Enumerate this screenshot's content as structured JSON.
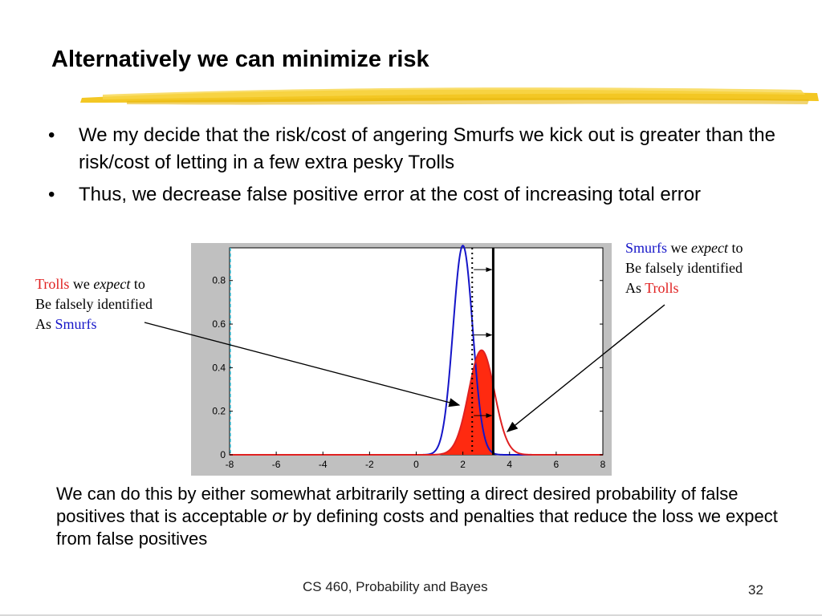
{
  "slide": {
    "title": "Alternatively we can minimize risk",
    "bullets": [
      "We my decide that the risk/cost of angering Smurfs we kick out is greater than the risk/cost of letting in a few extra pesky Trolls",
      "Thus, we decrease false positive error at the cost of increasing total error"
    ],
    "left_note": {
      "trolls": "Trolls",
      "we": " we ",
      "expect": "expect",
      "to": " to",
      "line2": "Be falsely identified",
      "as": "As ",
      "smurfs": "Smurfs"
    },
    "right_note": {
      "smurfs": "Smurfs",
      "we": " we ",
      "expect": "expect",
      "to": " to",
      "line2": "Be falsely identified",
      "as": "As ",
      "trolls": "Trolls"
    },
    "bottom_text": {
      "part1": "We can do this by either somewhat arbitrarily setting a direct desired probability of false positives that is acceptable ",
      "or": "or",
      "part2": " by defining costs and penalties that reduce the loss we expect from false positives"
    },
    "footer": "CS 460, Probability and Bayes",
    "page_number": "32"
  },
  "colors": {
    "smurfs": "#1515c8",
    "trolls": "#e02020",
    "fill": "#ff2a10",
    "highlight": "#f2c418"
  },
  "chart_data": {
    "type": "line",
    "xlim": [
      -8,
      8
    ],
    "ylim": [
      0,
      0.95
    ],
    "xticks": [
      -8,
      -6,
      -4,
      -2,
      0,
      2,
      4,
      6,
      8
    ],
    "yticks": [
      0,
      0.2,
      0.4,
      0.6,
      0.8
    ],
    "series": [
      {
        "color": "#1515c8",
        "mean": 2.0,
        "sd": 0.42,
        "peak": 0.96
      },
      {
        "color": "#e02020",
        "mean": 2.8,
        "sd": 0.55,
        "peak": 0.48
      }
    ],
    "dotted_threshold_x": 2.4,
    "solid_threshold_x": 3.3,
    "filled_region": "red curve left of solid threshold"
  }
}
